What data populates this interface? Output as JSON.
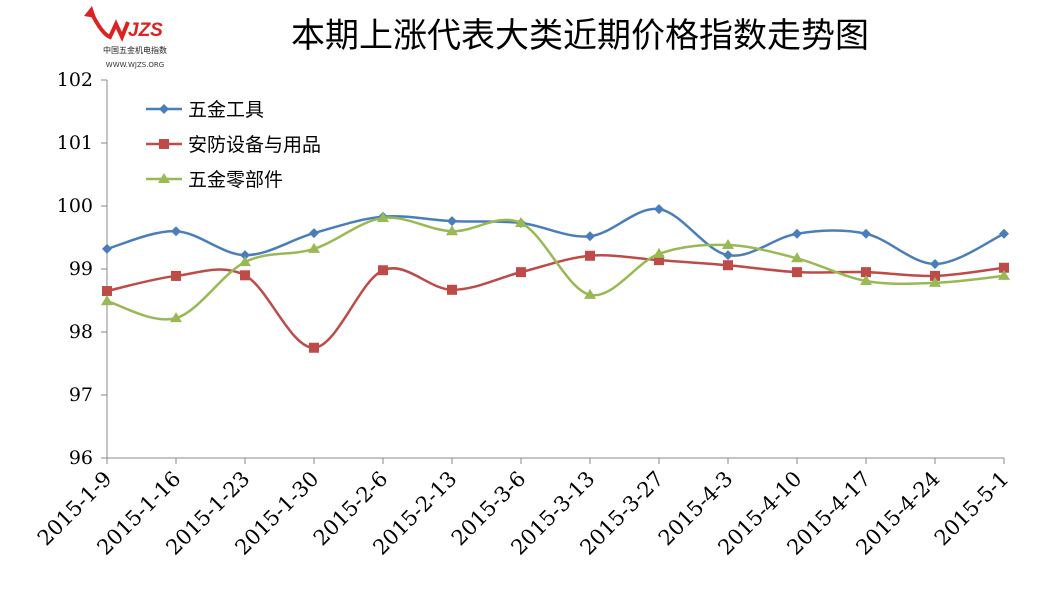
{
  "logo": {
    "brand": "WJZS",
    "name": "中国五金机电指数",
    "url": "WWW.WJZS.ORG"
  },
  "chart_data": {
    "type": "line",
    "title": "本期上涨代表大类近期价格指数走势图",
    "xlabel": "",
    "ylabel": "",
    "ylim": [
      96,
      102
    ],
    "yticks": [
      "96",
      "97",
      "98",
      "99",
      "100",
      "101",
      "102"
    ],
    "categories": [
      "2015-1-9",
      "2015-1-16",
      "2015-1-23",
      "2015-1-30",
      "2015-2-6",
      "2015-2-13",
      "2015-3-6",
      "2015-3-13",
      "2015-3-27",
      "2015-4-3",
      "2015-4-10",
      "2015-4-17",
      "2015-4-24",
      "2015-5-1"
    ],
    "legend_position": "top-left",
    "grid": false,
    "series": [
      {
        "name": "五金工具",
        "color": "#4a7ebb",
        "marker": "diamond",
        "values": [
          99.32,
          99.6,
          99.22,
          99.57,
          99.83,
          99.76,
          99.73,
          99.52,
          99.95,
          99.22,
          99.56,
          99.56,
          99.08,
          99.56
        ]
      },
      {
        "name": "安防设备与用品",
        "color": "#be4b48",
        "marker": "square",
        "values": [
          98.65,
          98.89,
          98.9,
          97.75,
          98.98,
          98.67,
          98.95,
          99.21,
          99.14,
          99.06,
          98.95,
          98.95,
          98.89,
          99.02
        ]
      },
      {
        "name": "五金零部件",
        "color": "#98b954",
        "marker": "triangle",
        "values": [
          98.49,
          98.22,
          99.11,
          99.32,
          99.81,
          99.6,
          99.73,
          98.59,
          99.24,
          99.38,
          99.17,
          98.81,
          98.78,
          98.89
        ]
      }
    ]
  }
}
